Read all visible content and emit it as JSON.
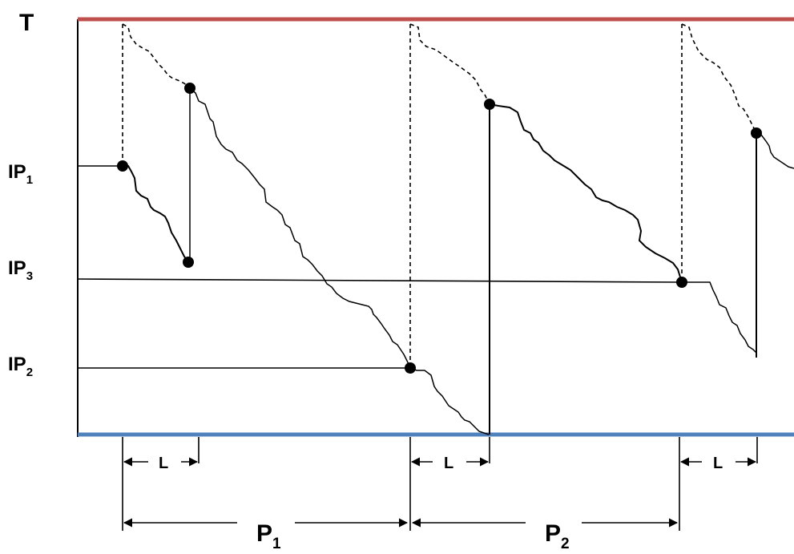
{
  "labels": {
    "top_axis": "T",
    "ip": "IP",
    "ip1_sub": "1",
    "ip2_sub": "2",
    "ip3_sub": "3",
    "lead_time": "L",
    "period": "P",
    "p1_sub": "1",
    "p2_sub": "2"
  },
  "colors": {
    "top_line": "#c0504d",
    "bottom_line": "#4f81bd",
    "ink": "#000000"
  }
}
